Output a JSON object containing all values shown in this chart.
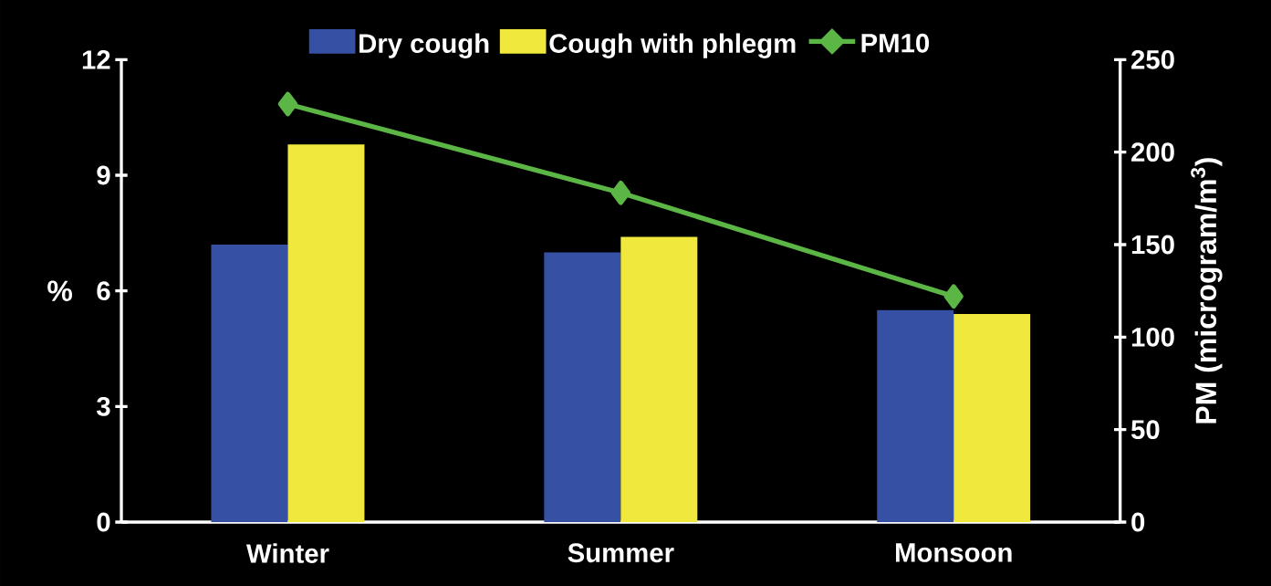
{
  "chart_data": {
    "type": "bar",
    "categories": [
      "Winter",
      "Summer",
      "Monsoon"
    ],
    "ylabel": "%",
    "y2label": "PM (microgram/m$^{3}$)",
    "ylim": [
      0,
      12
    ],
    "yticks": [
      0,
      3,
      6,
      9,
      12
    ],
    "y2lim": [
      0,
      250
    ],
    "y2ticks": [
      0,
      50,
      100,
      150,
      200,
      250
    ],
    "legend": "top",
    "series": [
      {
        "name": "Dry cough",
        "color": "#3650a4",
        "values": [
          7.2,
          7.0,
          5.5
        ]
      },
      {
        "name": "Cough with phlegm",
        "color": "#f0e83c",
        "values": [
          9.8,
          7.4,
          5.4
        ]
      },
      {
        "name": "PM10",
        "type": "line",
        "axis": "y2",
        "marker": "diamond",
        "color": "#5cb646",
        "values": [
          226,
          178,
          122
        ]
      }
    ]
  }
}
